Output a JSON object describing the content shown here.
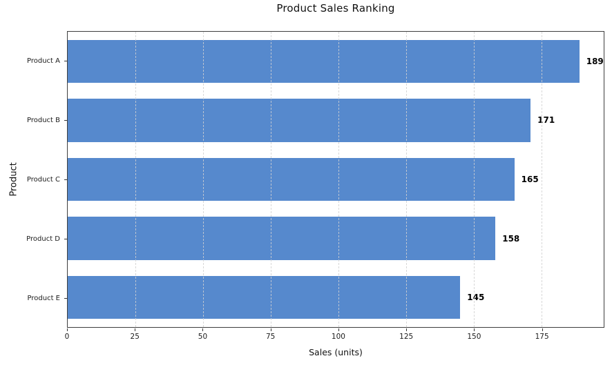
{
  "chart_data": {
    "type": "bar",
    "orientation": "horizontal",
    "title": "Product Sales Ranking",
    "xlabel": "Sales (units)",
    "ylabel": "Product",
    "categories": [
      "Product A",
      "Product B",
      "Product C",
      "Product D",
      "Product E"
    ],
    "values": [
      189,
      171,
      165,
      158,
      145
    ],
    "value_labels": [
      "189",
      "171",
      "165",
      "158",
      "145"
    ],
    "xticks": [
      0,
      25,
      50,
      75,
      100,
      125,
      150,
      175
    ],
    "xlim": [
      0,
      198
    ],
    "grid": "vertical-dashed",
    "legend_position": "none",
    "bar_color": "#5689cd",
    "axis_color": "#3d3d3d",
    "value_label_color": "#000000"
  }
}
